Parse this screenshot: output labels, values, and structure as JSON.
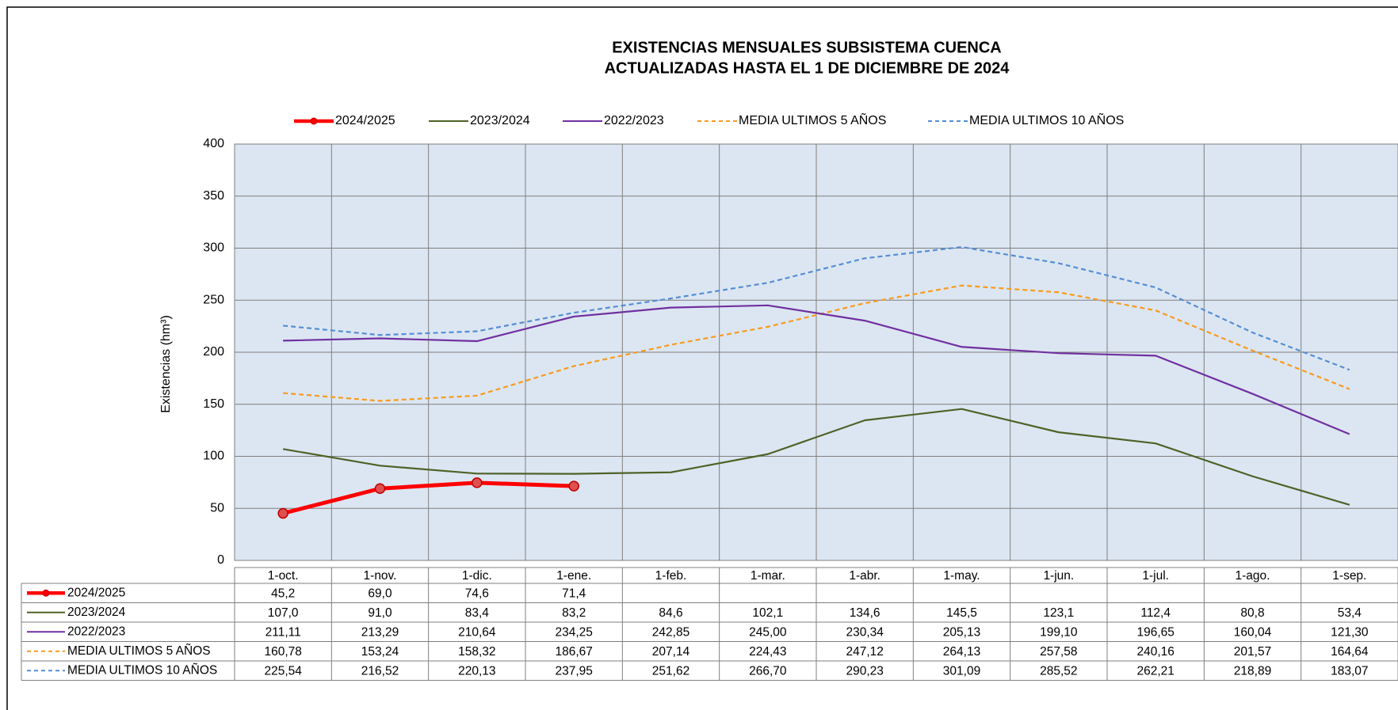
{
  "chart_data": {
    "type": "line",
    "title": "EXISTENCIAS MENSUALES SUBSISTEMA CUENCA",
    "subtitle": "ACTUALIZADAS  HASTA EL 1 DE DICIEMBRE DE 2024",
    "y_label": "Existencias (hm³)",
    "categories": [
      "1-oct.",
      "1-nov.",
      "1-dic.",
      "1-ene.",
      "1-feb.",
      "1-mar.",
      "1-abr.",
      "1-may.",
      "1-jun.",
      "1-jul.",
      "1-ago.",
      "1-sep."
    ],
    "ylim": [
      0,
      400
    ],
    "yticks": [
      0,
      50,
      100,
      150,
      200,
      250,
      300,
      350,
      400
    ],
    "grid": true,
    "series": [
      {
        "name": "2024/2025",
        "color": "#ff0000",
        "style": "solid",
        "markers": true,
        "values": [
          45.2,
          69.0,
          74.6,
          71.4,
          null,
          null,
          null,
          null,
          null,
          null,
          null,
          null
        ],
        "value_labels": [
          "45,2",
          "69,0",
          "74,6",
          "71,4",
          null,
          null,
          null,
          null,
          null,
          null,
          null,
          null
        ]
      },
      {
        "name": "2023/2024",
        "color": "#4f6228",
        "style": "solid",
        "values": [
          107.0,
          91.0,
          83.4,
          83.2,
          84.6,
          102.1,
          134.6,
          145.5,
          123.1,
          112.4,
          80.8,
          53.4
        ],
        "value_labels": [
          "107,0",
          "91,0",
          "83,4",
          "83,2",
          "84,6",
          "102,1",
          "134,6",
          "145,5",
          "123,1",
          "112,4",
          "80,8",
          "53,4"
        ]
      },
      {
        "name": "2022/2023",
        "color": "#7030a0",
        "style": "solid",
        "values": [
          211.11,
          213.29,
          210.64,
          234.25,
          242.85,
          245.0,
          230.34,
          205.13,
          199.1,
          196.65,
          160.04,
          121.3
        ],
        "value_labels": [
          "211,11",
          "213,29",
          "210,64",
          "234,25",
          "242,85",
          "245,00",
          "230,34",
          "205,13",
          "199,10",
          "196,65",
          "160,04",
          "121,30"
        ]
      },
      {
        "name": "MEDIA ULTIMOS 5 AÑOS",
        "color": "#f79b1f",
        "style": "dashed",
        "values": [
          160.78,
          153.24,
          158.32,
          186.67,
          207.14,
          224.43,
          247.12,
          264.13,
          257.58,
          240.16,
          201.57,
          164.64
        ],
        "value_labels": [
          "160,78",
          "153,24",
          "158,32",
          "186,67",
          "207,14",
          "224,43",
          "247,12",
          "264,13",
          "257,58",
          "240,16",
          "201,57",
          "164,64"
        ]
      },
      {
        "name": "MEDIA ULTIMOS 10 AÑOS",
        "color": "#558ed5",
        "style": "dashed",
        "values": [
          225.54,
          216.52,
          220.13,
          237.95,
          251.62,
          266.7,
          290.23,
          301.09,
          285.52,
          262.21,
          218.89,
          183.07
        ],
        "value_labels": [
          "225,54",
          "216,52",
          "220,13",
          "237,95",
          "251,62",
          "266,70",
          "290,23",
          "301,09",
          "285,52",
          "262,21",
          "218,89",
          "183,07"
        ]
      }
    ]
  }
}
